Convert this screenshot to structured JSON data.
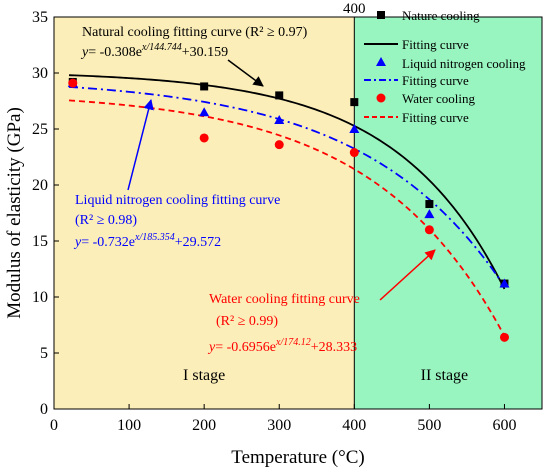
{
  "chart_data": {
    "type": "scatter",
    "xlabel": "Temperature (°C)",
    "ylabel": "Modulus of elasticity (GPa)",
    "xlim": [
      0,
      650
    ],
    "ylim": [
      0,
      35
    ],
    "xticks": [
      0,
      100,
      200,
      300,
      400,
      500,
      600
    ],
    "yticks": [
      0,
      5,
      10,
      15,
      20,
      25,
      30,
      35
    ],
    "top_tick_label": "400",
    "grid": false,
    "legend_position": "top-right",
    "regions": [
      {
        "label": "I stage",
        "x_range": [
          0,
          400
        ],
        "color": "#fbeeb8"
      },
      {
        "label": "II stage",
        "x_range": [
          400,
          650
        ],
        "color": "#98f5c0"
      }
    ],
    "series": [
      {
        "name": "Nature cooling",
        "marker": "square",
        "color": "#000000",
        "x": [
          25,
          200,
          300,
          400,
          500,
          600
        ],
        "y": [
          29.2,
          28.8,
          28.0,
          27.4,
          18.3,
          11.2
        ],
        "fit_name": "Fitting curve",
        "fit": {
          "a": -0.308,
          "b": 144.744,
          "c": 30.159
        },
        "fit_style": "solid"
      },
      {
        "name": "Liquid nitrogen cooling",
        "marker": "triangle",
        "color": "#0000ff",
        "x": [
          25,
          200,
          300,
          400,
          500,
          600
        ],
        "y": [
          29.1,
          26.5,
          25.8,
          25.0,
          17.4,
          11.2
        ],
        "fit_name": "Fitting curve",
        "fit": {
          "a": -0.732,
          "b": 185.354,
          "c": 29.572
        },
        "fit_style": "dashdot"
      },
      {
        "name": "Water cooling",
        "marker": "circle",
        "color": "#ff0000",
        "x": [
          25,
          200,
          300,
          400,
          500,
          600
        ],
        "y": [
          29.1,
          24.2,
          23.6,
          22.9,
          16.0,
          6.4
        ],
        "fit_name": "Fitting curve",
        "fit": {
          "a": -0.6956,
          "b": 174.12,
          "c": 28.333
        },
        "fit_style": "dash"
      }
    ],
    "annotations": [
      {
        "color": "#000000",
        "title": "Natural cooling fitting curve  (R² ≥ 0.97)",
        "r2": "",
        "equation": "y= -0.308e^{x/144.744}+30.159"
      },
      {
        "color": "#0000ff",
        "title": "Liquid nitrogen cooling fitting curve",
        "r2": "(R² ≥ 0.98)",
        "equation": "y= -0.732e^{x/185.354}+29.572"
      },
      {
        "color": "#ff0000",
        "title": "Water cooling fitting curve",
        "r2": "(R² ≥ 0.99)",
        "equation": "y= -0.6956e^{x/174.12}+28.333"
      }
    ]
  }
}
